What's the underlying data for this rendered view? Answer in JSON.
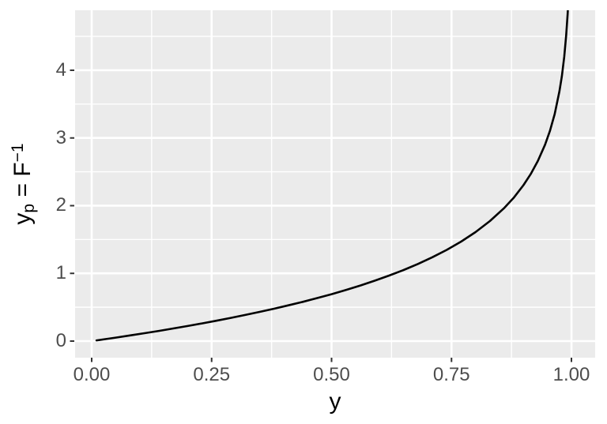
{
  "chart_data": {
    "type": "line",
    "title": "",
    "xlabel": "y",
    "ylabel": {
      "base": "y",
      "sub": "p",
      "eq": " = F",
      "sup": "−1"
    },
    "x_ticks": {
      "values": [
        0,
        0.25,
        0.5,
        0.75,
        1.0
      ],
      "labels": [
        "0.00",
        "0.25",
        "0.50",
        "0.75",
        "1.00"
      ]
    },
    "y_ticks": {
      "values": [
        0,
        1,
        2,
        3,
        4
      ],
      "labels": [
        "0",
        "1",
        "2",
        "3",
        "4"
      ]
    },
    "x_minor": [
      0.125,
      0.375,
      0.625,
      0.875
    ],
    "y_minor": [
      0.5,
      1.5,
      2.5,
      3.5,
      4.5
    ],
    "xlim": [
      -0.0346,
      1.0494
    ],
    "ylim": [
      -0.245,
      4.886
    ],
    "grid": true,
    "legend": "none",
    "function": "y_p = -ln(1 - y)  (exponential inverse CDF / quantile function)",
    "points": [
      [
        0.01,
        0.0101
      ],
      [
        0.03,
        0.0305
      ],
      [
        0.05,
        0.0513
      ],
      [
        0.08,
        0.0834
      ],
      [
        0.11,
        0.1165
      ],
      [
        0.14,
        0.1508
      ],
      [
        0.17,
        0.1863
      ],
      [
        0.2,
        0.2231
      ],
      [
        0.23,
        0.2614
      ],
      [
        0.26,
        0.3011
      ],
      [
        0.29,
        0.3425
      ],
      [
        0.32,
        0.3857
      ],
      [
        0.35,
        0.4308
      ],
      [
        0.38,
        0.478
      ],
      [
        0.41,
        0.5276
      ],
      [
        0.44,
        0.5798
      ],
      [
        0.47,
        0.6349
      ],
      [
        0.5,
        0.6931
      ],
      [
        0.53,
        0.755
      ],
      [
        0.56,
        0.821
      ],
      [
        0.59,
        0.8916
      ],
      [
        0.62,
        0.9676
      ],
      [
        0.65,
        1.0498
      ],
      [
        0.68,
        1.1394
      ],
      [
        0.71,
        1.2379
      ],
      [
        0.74,
        1.3471
      ],
      [
        0.77,
        1.4697
      ],
      [
        0.8,
        1.6094
      ],
      [
        0.83,
        1.772
      ],
      [
        0.86,
        1.9661
      ],
      [
        0.88,
        2.1203
      ],
      [
        0.9,
        2.3026
      ],
      [
        0.915,
        2.4651
      ],
      [
        0.93,
        2.6593
      ],
      [
        0.945,
        2.9004
      ],
      [
        0.955,
        3.1011
      ],
      [
        0.965,
        3.3524
      ],
      [
        0.975,
        3.6889
      ],
      [
        0.98,
        3.912
      ],
      [
        0.985,
        4.1997
      ],
      [
        0.989,
        4.5099
      ],
      [
        0.992,
        4.8283
      ],
      [
        0.993,
        4.9618
      ]
    ],
    "colors": {
      "line": "#000000",
      "panel_bg": "#EBEBEB",
      "grid": "#FFFFFF",
      "tick": "#333333",
      "tick_label": "#4D4D4D",
      "axis_title": "#000000",
      "background": "#FFFFFF"
    }
  }
}
